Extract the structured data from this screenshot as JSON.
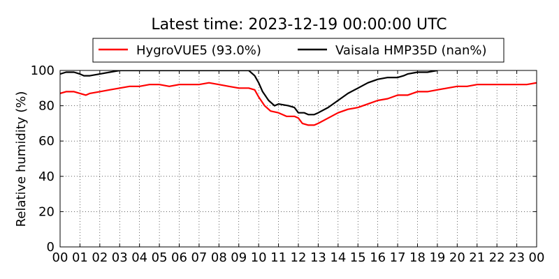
{
  "chart_data": {
    "type": "line",
    "title": "Latest time: 2023-12-19 00:00:00 UTC",
    "xlabel": "",
    "ylabel": "Relative humidity (%)",
    "xlim": [
      0,
      24
    ],
    "ylim": [
      0,
      100
    ],
    "grid": true,
    "legend_position": "top",
    "x_tick_labels": [
      "00",
      "01",
      "02",
      "03",
      "04",
      "05",
      "06",
      "07",
      "08",
      "09",
      "10",
      "11",
      "12",
      "13",
      "14",
      "15",
      "16",
      "17",
      "18",
      "19",
      "20",
      "21",
      "22",
      "23",
      "00"
    ],
    "y_tick_labels": [
      "0",
      "20",
      "40",
      "60",
      "80",
      "100"
    ],
    "series": [
      {
        "name": "HygroVUE5 (93.0%)",
        "color": "#ff0000",
        "x": [
          0,
          0.3,
          0.7,
          1.0,
          1.3,
          1.5,
          2.0,
          2.5,
          3.0,
          3.5,
          4.0,
          4.5,
          5.0,
          5.5,
          6.0,
          6.5,
          7.0,
          7.5,
          8.0,
          8.5,
          9.0,
          9.5,
          9.8,
          10.0,
          10.3,
          10.6,
          11.0,
          11.4,
          11.8,
          12.0,
          12.2,
          12.5,
          12.8,
          13.0,
          13.5,
          14.0,
          14.5,
          15.0,
          15.5,
          16.0,
          16.5,
          17.0,
          17.5,
          18.0,
          18.5,
          19.0,
          19.5,
          20.0,
          20.5,
          21.0,
          21.5,
          22.0,
          22.5,
          23.0,
          23.5,
          24.0
        ],
        "y": [
          87,
          88,
          88,
          87,
          86,
          87,
          88,
          89,
          90,
          91,
          91,
          92,
          92,
          91,
          92,
          92,
          92,
          93,
          92,
          91,
          90,
          90,
          89,
          85,
          80,
          77,
          76,
          74,
          74,
          73,
          70,
          69,
          69,
          70,
          73,
          76,
          78,
          79,
          81,
          83,
          84,
          86,
          86,
          88,
          88,
          89,
          90,
          91,
          91,
          92,
          92,
          92,
          92,
          92,
          92,
          93
        ]
      },
      {
        "name": "Vaisala HMP35D (nan%)",
        "color": "#000000",
        "x": [
          0,
          0.3,
          0.7,
          1.0,
          1.2,
          1.5,
          2.0,
          2.5,
          3.0,
          4.0,
          5.0,
          6.0,
          7.0,
          8.0,
          9.0,
          9.5,
          9.8,
          10.0,
          10.2,
          10.5,
          10.8,
          11.0,
          11.5,
          11.8,
          12.0,
          12.3,
          12.5,
          12.8,
          13.0,
          13.5,
          14.0,
          14.5,
          15.0,
          15.5,
          16.0,
          16.5,
          17.0,
          17.3,
          17.5,
          18.0,
          18.5,
          19.0
        ],
        "y": [
          98,
          99,
          99,
          98,
          97,
          97,
          98,
          99,
          100,
          100,
          100,
          100,
          100,
          100,
          100,
          100,
          97,
          93,
          88,
          83,
          80,
          81,
          80,
          79,
          76,
          76,
          75,
          75,
          76,
          79,
          83,
          87,
          90,
          93,
          95,
          96,
          96,
          97,
          98,
          99,
          99,
          100
        ]
      }
    ]
  }
}
